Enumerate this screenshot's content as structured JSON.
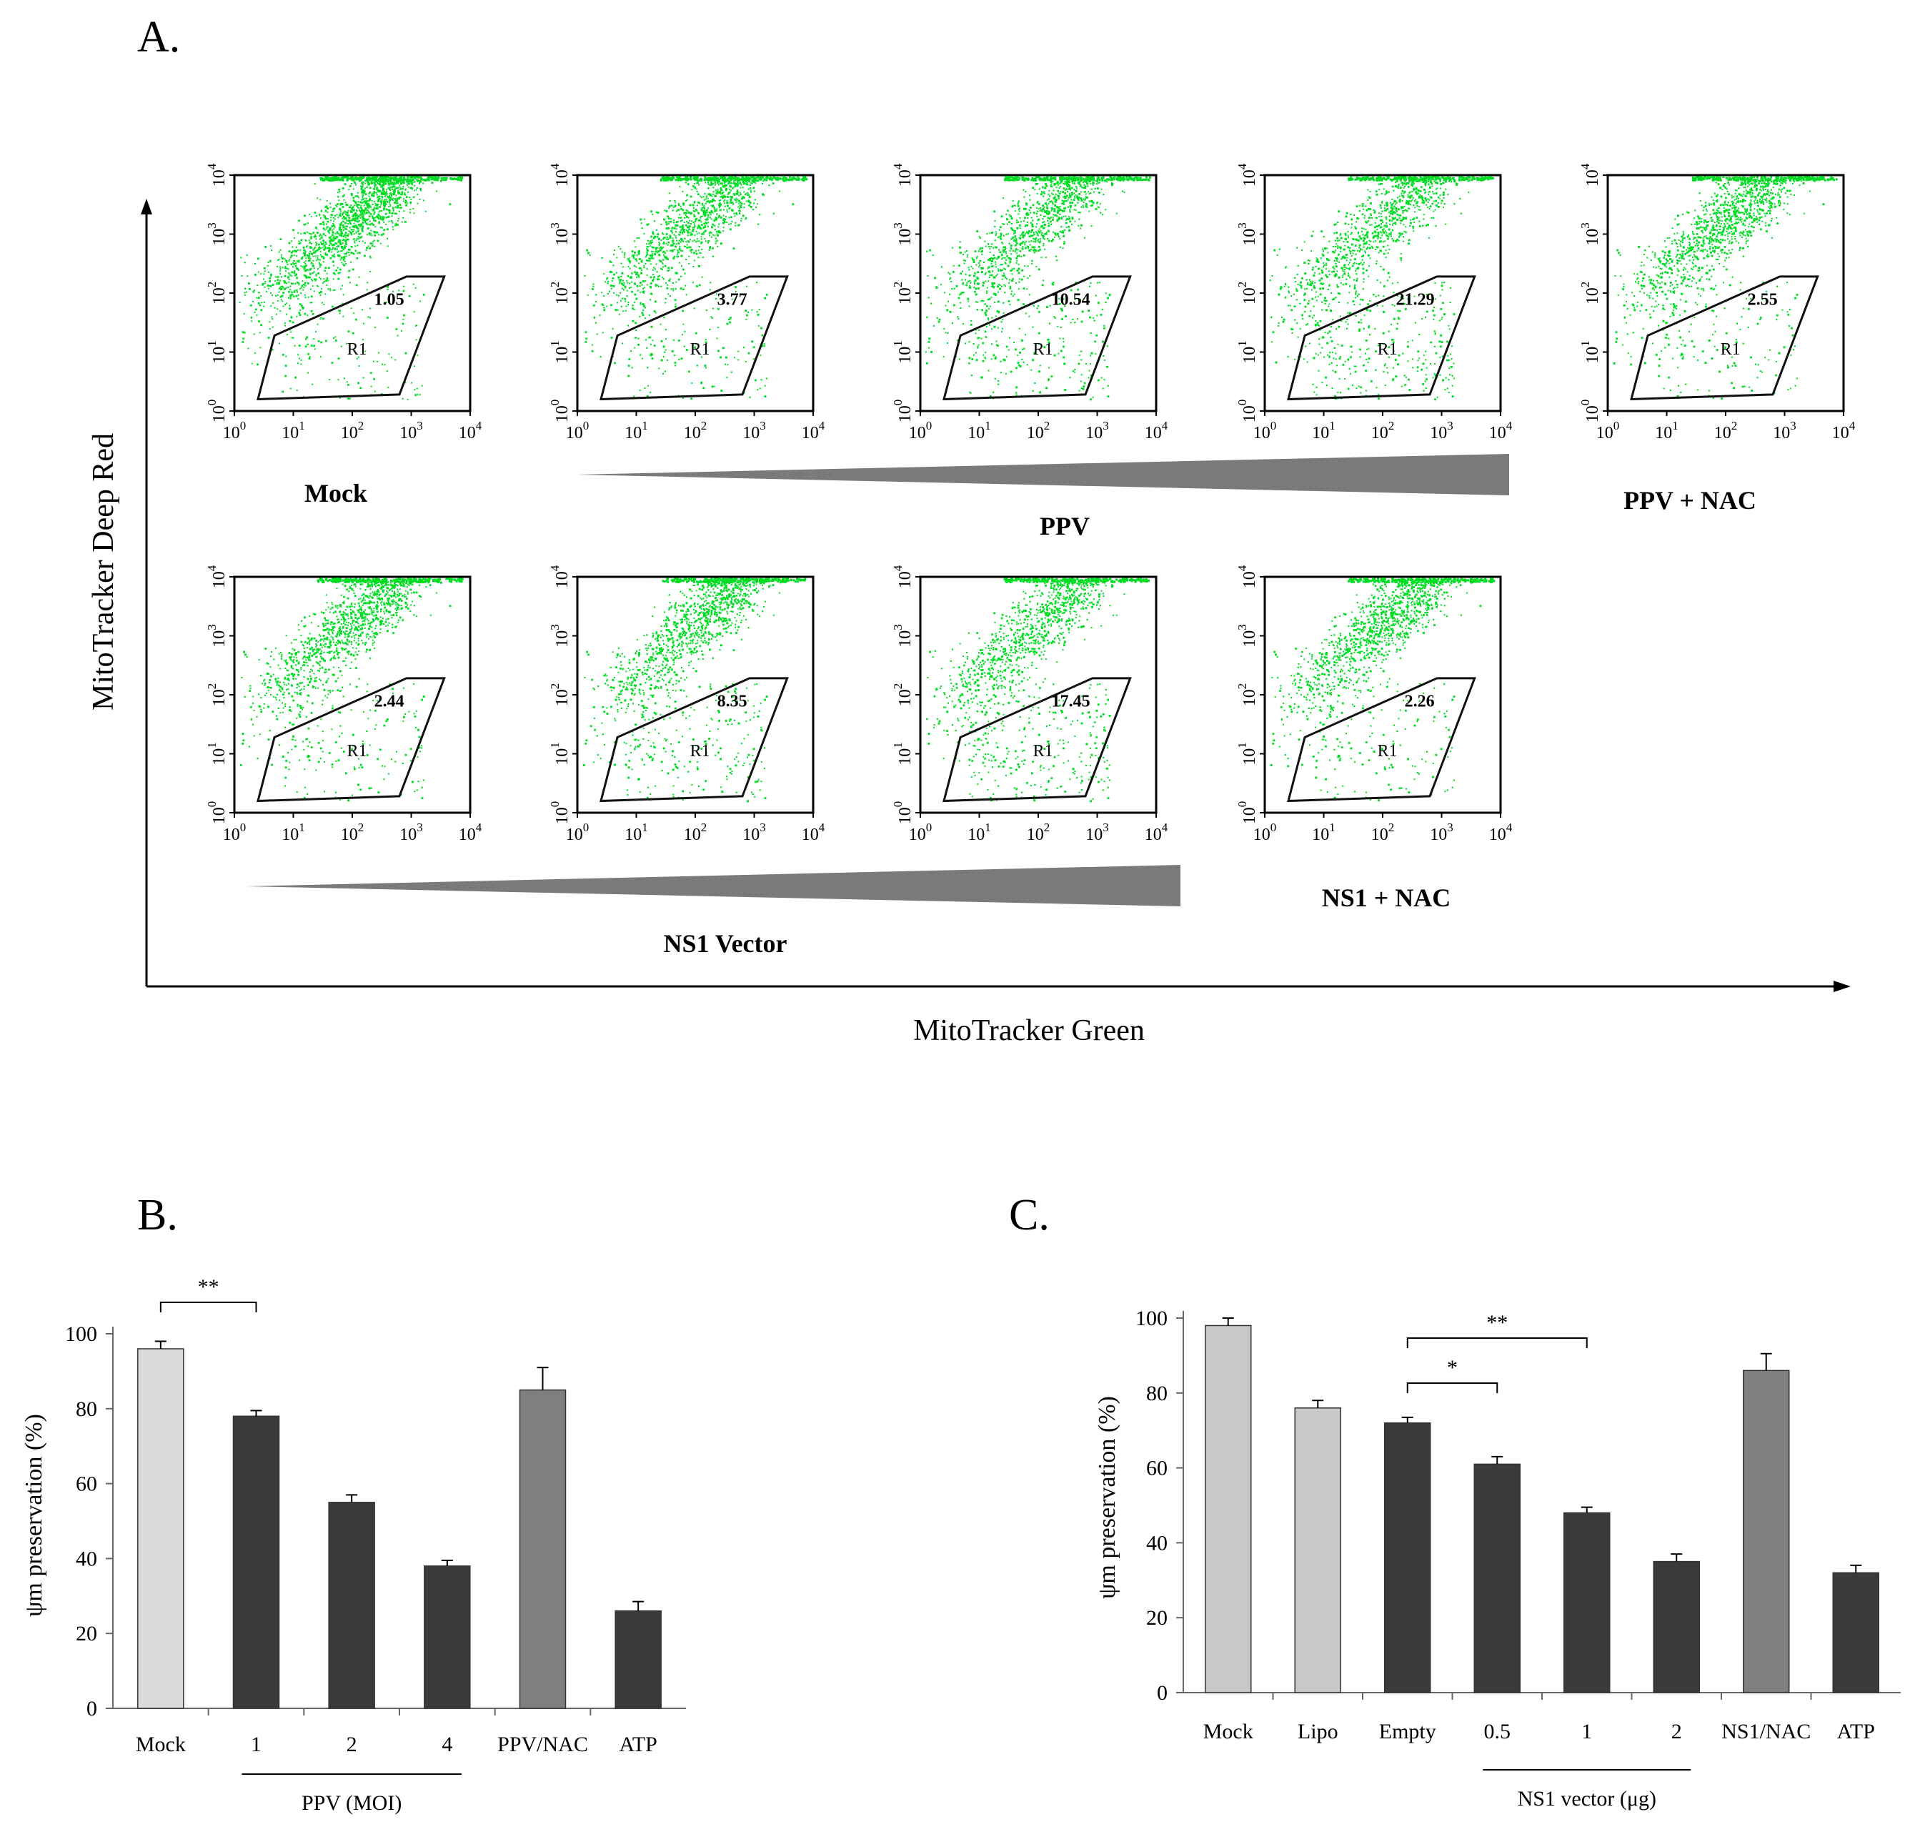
{
  "colors": {
    "dot": "#00dd22",
    "bar_dark": "#3a3a3a",
    "bar_light": "#c8c8c8",
    "bar_lighter": "#dadada",
    "bar_mid": "#7f7f7f",
    "wedge": "#7a7a7a"
  },
  "panels": {
    "a": {
      "letter": "A."
    },
    "b": {
      "letter": "B."
    },
    "c": {
      "letter": "C."
    }
  },
  "chart_data": [
    {
      "type": "scatter",
      "title": "A.",
      "xlabel": "MitoTracker Green",
      "ylabel": "MitoTracker Deep Red",
      "axis_ticks": [
        "10^0",
        "10^1",
        "10^2",
        "10^3",
        "10^4"
      ],
      "gate_label": "R1",
      "plots": [
        {
          "group": "Mock",
          "r1_percent": "1.05"
        },
        {
          "group": "PPV",
          "r1_percent": "3.77"
        },
        {
          "group": "PPV",
          "r1_percent": "10.54"
        },
        {
          "group": "PPV",
          "r1_percent": "21.29"
        },
        {
          "group": "PPV + NAC",
          "r1_percent": "2.55"
        },
        {
          "group": "NS1 Vector",
          "r1_percent": "2.44"
        },
        {
          "group": "NS1 Vector",
          "r1_percent": "8.35"
        },
        {
          "group": "NS1 Vector",
          "r1_percent": "17.45"
        },
        {
          "group": "NS1 + NAC",
          "r1_percent": "2.26"
        }
      ],
      "group_labels": {
        "mock": "Mock",
        "ppv": "PPV",
        "ppv_nac": "PPV + NAC",
        "ns1": "NS1 Vector",
        "ns1_nac": "NS1 + NAC"
      }
    },
    {
      "type": "bar",
      "title": "B.",
      "ylabel": "ψm preservation (%)",
      "categories": [
        "Mock",
        "1",
        "2",
        "4",
        "PPV/NAC",
        "ATP"
      ],
      "values": [
        96,
        78,
        55,
        38,
        85,
        26
      ],
      "errors": [
        2,
        1.5,
        2,
        1.5,
        6,
        2.5
      ],
      "ylim": [
        0,
        100
      ],
      "yticks": [
        0,
        20,
        40,
        60,
        80,
        100
      ],
      "group_label": "PPV (MOI)",
      "significance": [
        {
          "from": 0,
          "to": 1,
          "label": "**"
        }
      ]
    },
    {
      "type": "bar",
      "title": "C.",
      "ylabel": "ψm preservation (%)",
      "categories": [
        "Mock",
        "Lipo",
        "Empty",
        "0.5",
        "1",
        "2",
        "NS1/NAC",
        "ATP"
      ],
      "values": [
        98,
        76,
        72,
        61,
        48,
        35,
        86,
        32
      ],
      "errors": [
        2,
        2,
        1.5,
        2,
        1.5,
        2,
        4.5,
        2
      ],
      "ylim": [
        0,
        100
      ],
      "yticks": [
        0,
        20,
        40,
        60,
        80,
        100
      ],
      "group_label": "NS1 vector (μg)",
      "significance": [
        {
          "from": 2,
          "to": 3,
          "label": "*"
        },
        {
          "from": 2,
          "to": 4,
          "label": "**"
        }
      ]
    }
  ]
}
